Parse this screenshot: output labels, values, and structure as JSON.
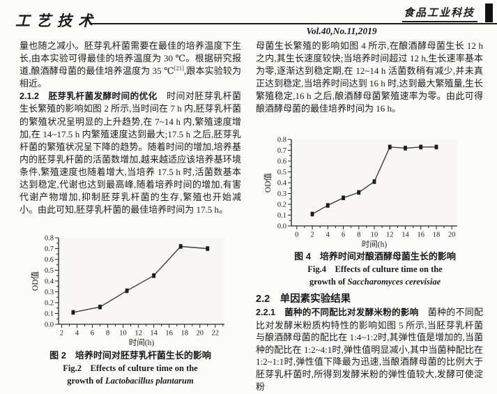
{
  "header": {
    "section_logo": "工艺技术",
    "journal_logo": "食品工业科技",
    "volume": "Vol.40,No.11,2019"
  },
  "colors": {
    "ink": "#1b1b1b",
    "chart_line": "#3c3c3c",
    "chart_marker": "#1c1c1c",
    "plot_bg": "#f8f7f4"
  },
  "left_column": {
    "para1_pre": "量也随之减小。胚芽乳杆菌需要在最佳的培养温度下生长,由本实验可得最佳的培养温度为 30 ℃。根据研究报道,酿酒酵母菌的最佳培养温度为 35 ℃",
    "para1_sup": "[21]",
    "para1_post": ",跟本实验较为相近。",
    "sec212_heading": "2.1.2　胚芽乳杆菌发酵时间的优化",
    "sec212_body": "　时间对胚芽乳杆菌生长繁殖的影响如图 2 所示,当时间在 7 h 内,胚芽乳杆菌的繁殖状况呈明显的上升趋势,在 7~14 h 内,繁殖速度增加,在 14~17.5 h 内繁殖速度达到最大;17.5 h 之后,胚芽乳杆菌的繁殖状况呈下降的趋势。随着时间的增加,培养基内的胚芽乳杆菌的活菌数增加,越来越适应该培养基环境条件,繁殖速度也随着增大,当培养 17.5 h 时,活菌数基本达到稳定,代谢也达到最高峰,随着培养时间的增加,有害代谢产物增加,抑制胚芽乳杆菌的生存,繁殖也开始减小。由此可知,胚芽乳杆菌的最佳培养时间为 17.5 h。",
    "fig2_caption_cn": "图 2　培养时间对胚芽乳杆菌生长的影响",
    "fig2_caption_en_1": "Fig.2　Effects of culture time on the",
    "fig2_caption_en_2a": "growth of ",
    "fig2_caption_en_2b": "Lactobacillus plantarum"
  },
  "right_column": {
    "para1": "母菌生长繁殖的影响如图 4 所示,在酿酒酵母菌生长 12 h 之内,其生长速度较快;当培养时间超过 12 h,生长速率基本为零,逐渐达到稳定期,在 12~14 h 活菌数稍有减少,并未真正达到稳定,当培养时间达到 16 h 时,达到最大繁殖量,生长繁殖稳定,16 h 之后,酿酒酵母菌繁殖速率为零。由此可得酿酒酵母菌的最佳培养时间为 16 h。",
    "fig4_caption_cn": "图 4　培养时间对酿酒酵母菌生长的影响",
    "fig4_caption_en_1": "Fig.4　Effects of culture time on the",
    "fig4_caption_en_2a": "growth of ",
    "fig4_caption_en_2b": "Saccharomyces cerevisiae",
    "sec22_heading": "2.2　单因素实验结果",
    "sec221_heading": "2.2.1　菌种的不同配比对发酵米粉的影响",
    "sec221_body": "　菌种的不同配比对发酵米粉质构特性的影响如图 5 所示,当胚芽乳杆菌与酿酒酵母菌的配比在 1:4~1:2时,其弹性值是增加的,当菌种的配比在 1:2~4:1时,弹性值明显减小,其中当菌种配比在 1:2~1:1时,弹性值下降最为迅速,当酿酒酵母菌的比例大于胚芽乳杆菌时,所得到发酵米粉的弹性值较大,发酵可使淀粉"
  },
  "chart_data": [
    {
      "type": "line",
      "name": "fig2",
      "title": "培养时间对胚芽乳杆菌生长的影响",
      "xlabel": "时间(h)",
      "ylabel": "OD值",
      "xlim": [
        1.6,
        23.2
      ],
      "ylim": [
        0.0,
        0.8
      ],
      "x_ticks": [
        2,
        4,
        6,
        8,
        10,
        12,
        14,
        16,
        18,
        20,
        22
      ],
      "y_major": 0.1,
      "y_minor": 0.05,
      "x": [
        3.5,
        7,
        10.5,
        14,
        17.5,
        21
      ],
      "y": [
        0.11,
        0.16,
        0.31,
        0.45,
        0.72,
        0.7
      ],
      "error": 0.018,
      "grid": false,
      "legend": null,
      "line_color": "#3c3c3c",
      "marker_color": "#1c1c1c",
      "plot_bg": "#f8f7f4"
    },
    {
      "type": "line",
      "name": "fig4",
      "title": "培养时间对酿酒酵母菌生长的影响",
      "xlabel": "时间(h)",
      "ylabel": "OD值",
      "xlim": [
        -0.7,
        20.7
      ],
      "ylim": [
        0.0,
        0.8
      ],
      "x_ticks": [
        0,
        2,
        4,
        6,
        8,
        10,
        12,
        14,
        16,
        18,
        20
      ],
      "y_major": 0.1,
      "y_minor": 0.05,
      "x": [
        2,
        4,
        6,
        8,
        10,
        12,
        14,
        16,
        18
      ],
      "y": [
        0.11,
        0.19,
        0.26,
        0.31,
        0.41,
        0.73,
        0.72,
        0.73,
        0.73
      ],
      "error": 0.018,
      "grid": false,
      "legend": null,
      "line_color": "#3c3c3c",
      "marker_color": "#1c1c1c",
      "plot_bg": "#f8f7f4"
    }
  ]
}
